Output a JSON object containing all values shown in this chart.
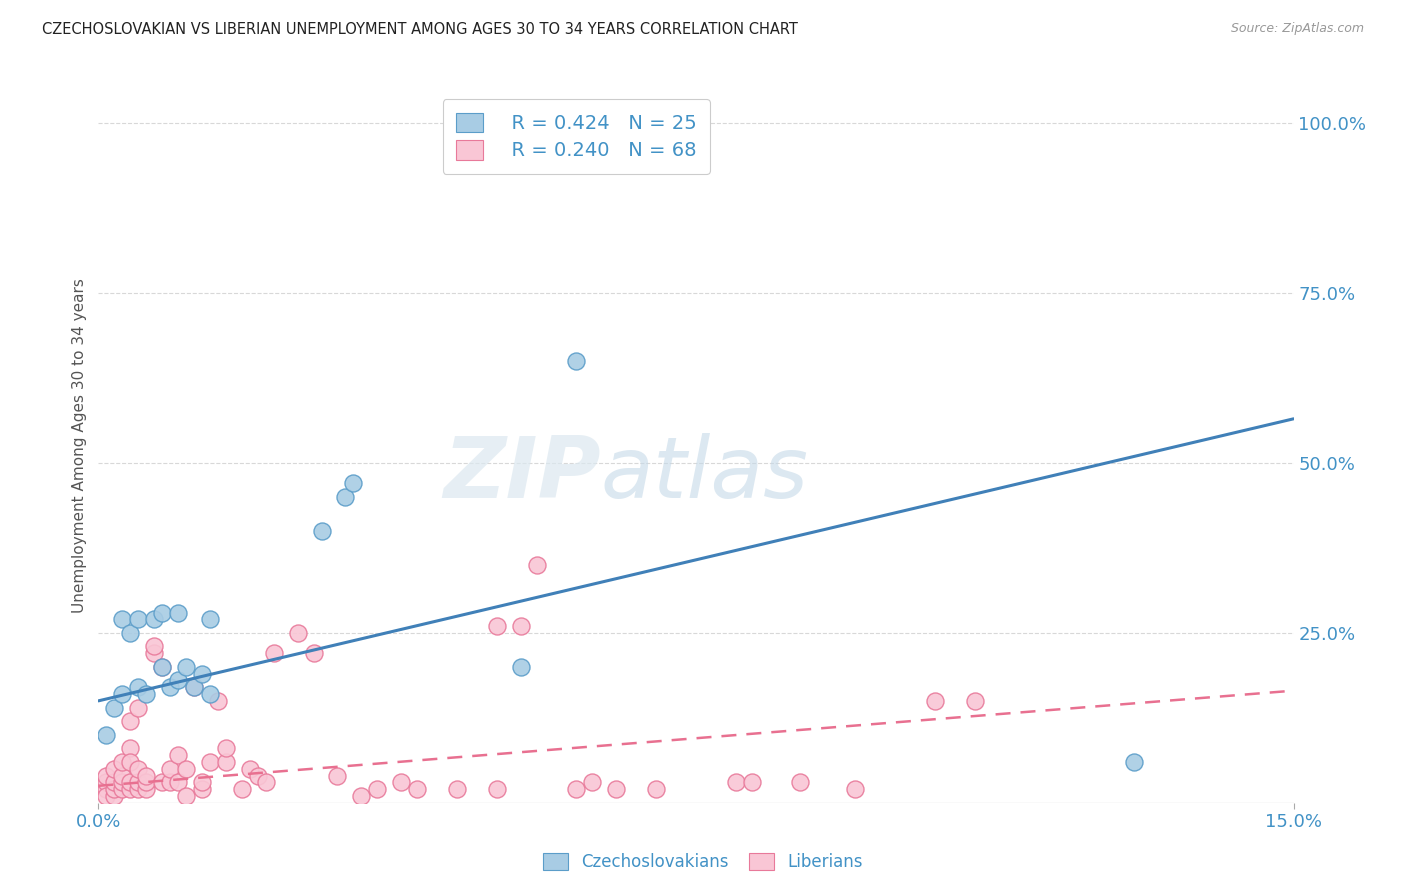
{
  "title": "CZECHOSLOVAKIAN VS LIBERIAN UNEMPLOYMENT AMONG AGES 30 TO 34 YEARS CORRELATION CHART",
  "source": "Source: ZipAtlas.com",
  "ylabel": "Unemployment Among Ages 30 to 34 years",
  "right_yticks": [
    "100.0%",
    "75.0%",
    "50.0%",
    "25.0%"
  ],
  "right_ytick_vals": [
    1.0,
    0.75,
    0.5,
    0.25
  ],
  "blue_R": "R = 0.424",
  "blue_N": "N = 25",
  "pink_R": "R = 0.240",
  "pink_N": "N = 68",
  "legend_label_blue": "Czechoslovakians",
  "legend_label_pink": "Liberians",
  "blue_color": "#a8cce4",
  "pink_color": "#f9c6d5",
  "blue_edge_color": "#5b9dc9",
  "pink_edge_color": "#e8799a",
  "blue_line_color": "#4080b8",
  "pink_line_color": "#e87090",
  "bg_color": "#ffffff",
  "grid_color": "#d8d8d8",
  "blue_line_x0": 0.0,
  "blue_line_y0": 0.15,
  "blue_line_x1": 0.15,
  "blue_line_y1": 0.565,
  "pink_line_x0": 0.0,
  "pink_line_y0": 0.025,
  "pink_line_x1": 0.15,
  "pink_line_y1": 0.165,
  "blue_scatter_x": [
    0.001,
    0.002,
    0.003,
    0.003,
    0.004,
    0.005,
    0.005,
    0.006,
    0.007,
    0.008,
    0.008,
    0.009,
    0.01,
    0.01,
    0.011,
    0.012,
    0.013,
    0.014,
    0.014,
    0.028,
    0.031,
    0.032,
    0.053,
    0.06,
    0.13
  ],
  "blue_scatter_y": [
    0.1,
    0.14,
    0.16,
    0.27,
    0.25,
    0.17,
    0.27,
    0.16,
    0.27,
    0.2,
    0.28,
    0.17,
    0.28,
    0.18,
    0.2,
    0.17,
    0.19,
    0.27,
    0.16,
    0.4,
    0.45,
    0.47,
    0.2,
    0.65,
    0.06
  ],
  "pink_scatter_x": [
    0.001,
    0.001,
    0.001,
    0.001,
    0.002,
    0.002,
    0.002,
    0.002,
    0.003,
    0.003,
    0.003,
    0.003,
    0.004,
    0.004,
    0.004,
    0.004,
    0.004,
    0.005,
    0.005,
    0.005,
    0.005,
    0.006,
    0.006,
    0.006,
    0.007,
    0.007,
    0.008,
    0.008,
    0.009,
    0.009,
    0.01,
    0.01,
    0.011,
    0.011,
    0.012,
    0.013,
    0.013,
    0.014,
    0.015,
    0.016,
    0.016,
    0.018,
    0.019,
    0.02,
    0.021,
    0.022,
    0.025,
    0.027,
    0.03,
    0.033,
    0.035,
    0.038,
    0.04,
    0.045,
    0.05,
    0.05,
    0.053,
    0.055,
    0.06,
    0.062,
    0.065,
    0.07,
    0.08,
    0.082,
    0.088,
    0.095,
    0.105,
    0.11
  ],
  "pink_scatter_y": [
    0.02,
    0.03,
    0.04,
    0.01,
    0.01,
    0.02,
    0.03,
    0.05,
    0.02,
    0.03,
    0.04,
    0.06,
    0.02,
    0.03,
    0.08,
    0.12,
    0.06,
    0.02,
    0.03,
    0.05,
    0.14,
    0.02,
    0.03,
    0.04,
    0.22,
    0.23,
    0.03,
    0.2,
    0.03,
    0.05,
    0.07,
    0.03,
    0.05,
    0.01,
    0.17,
    0.02,
    0.03,
    0.06,
    0.15,
    0.06,
    0.08,
    0.02,
    0.05,
    0.04,
    0.03,
    0.22,
    0.25,
    0.22,
    0.04,
    0.01,
    0.02,
    0.03,
    0.02,
    0.02,
    0.02,
    0.26,
    0.26,
    0.35,
    0.02,
    0.03,
    0.02,
    0.02,
    0.03,
    0.03,
    0.03,
    0.02,
    0.15,
    0.15
  ],
  "xmin": 0.0,
  "xmax": 0.15,
  "ymin": 0.0,
  "ymax": 1.05,
  "watermark_zip": "ZIP",
  "watermark_atlas": "atlas"
}
